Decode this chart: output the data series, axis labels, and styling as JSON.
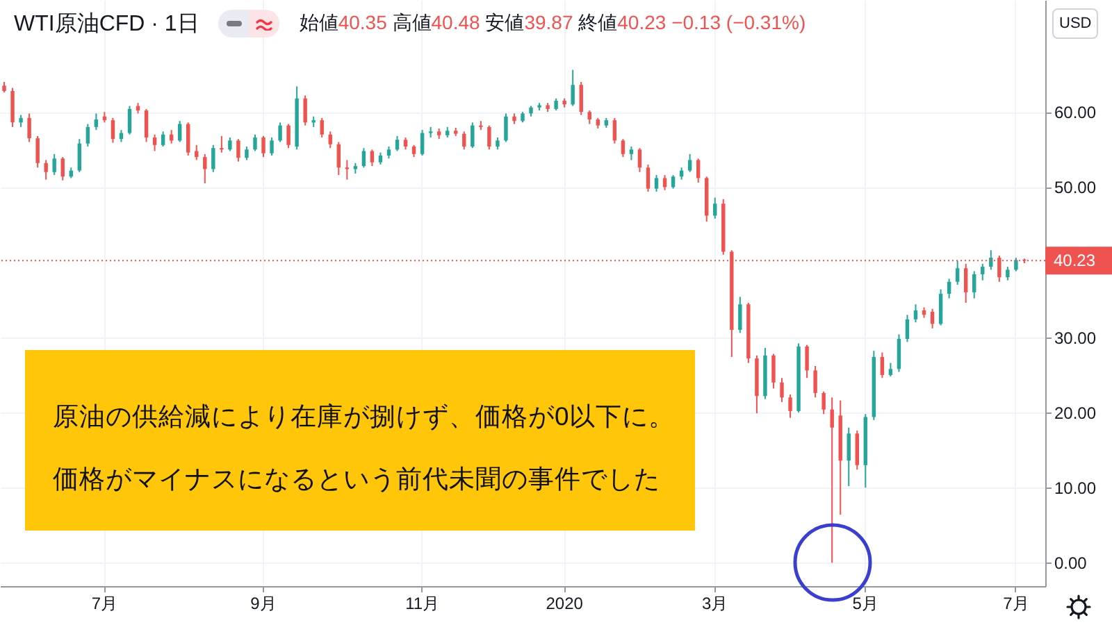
{
  "chart_data": {
    "type": "candlestick",
    "title": "WTI原油CFD · 1日",
    "subtitle": "始値40.35 高値40.48 安値39.87 終値40.23 −0.13 (−0.31%)",
    "ylabel": "USD",
    "annotations": [
      "原油の供給減により在庫が捌けず、価格が0以下に。",
      "価格がマイナスになるという前代未聞の事件でした"
    ],
    "categories": [
      null,
      null,
      null,
      null,
      null,
      null,
      null,
      null,
      null,
      null,
      null,
      null,
      "7月",
      null,
      null,
      null,
      null,
      null,
      null,
      null,
      null,
      null,
      null,
      null,
      null,
      null,
      null,
      null,
      null,
      null,
      null,
      "9月",
      null,
      null,
      null,
      null,
      null,
      null,
      null,
      null,
      null,
      null,
      null,
      null,
      null,
      null,
      null,
      null,
      null,
      null,
      "11月",
      null,
      null,
      null,
      null,
      null,
      null,
      null,
      null,
      null,
      null,
      null,
      null,
      null,
      null,
      null,
      null,
      "2020",
      null,
      null,
      null,
      null,
      null,
      null,
      null,
      null,
      null,
      null,
      null,
      null,
      null,
      null,
      null,
      null,
      null,
      "3月",
      null,
      null,
      null,
      null,
      null,
      null,
      null,
      null,
      null,
      null,
      null,
      null,
      null,
      null,
      null,
      null,
      null,
      "5月",
      null,
      null,
      null,
      null,
      null,
      null,
      null,
      null,
      null,
      null,
      null,
      null,
      null,
      null,
      null,
      null,
      null,
      "7月",
      null,
      null,
      null
    ],
    "ohlc": [
      [
        63.5,
        64.0,
        62.6,
        62.8
      ],
      [
        62.8,
        63.2,
        58.0,
        58.6
      ],
      [
        58.6,
        59.6,
        58.0,
        59.2
      ],
      [
        59.2,
        59.8,
        56.0,
        56.5
      ],
      [
        56.5,
        56.8,
        52.6,
        53.2
      ],
      [
        53.2,
        53.6,
        51.0,
        52.0
      ],
      [
        52.0,
        54.4,
        51.6,
        53.8
      ],
      [
        53.8,
        54.0,
        50.9,
        51.4
      ],
      [
        51.4,
        52.6,
        51.2,
        52.2
      ],
      [
        52.2,
        56.4,
        52.0,
        55.8
      ],
      [
        55.8,
        58.4,
        55.4,
        58.0
      ],
      [
        58.0,
        59.8,
        57.6,
        59.0
      ],
      [
        59.4,
        60.0,
        58.6,
        58.9
      ],
      [
        58.9,
        59.2,
        55.9,
        56.4
      ],
      [
        56.4,
        57.6,
        56.0,
        57.2
      ],
      [
        57.2,
        60.8,
        57.0,
        60.4
      ],
      [
        60.8,
        61.2,
        59.8,
        60.2
      ],
      [
        60.2,
        60.4,
        56.0,
        56.6
      ],
      [
        56.6,
        57.0,
        54.8,
        55.6
      ],
      [
        55.6,
        57.4,
        55.4,
        57.0
      ],
      [
        57.0,
        57.6,
        55.8,
        56.2
      ],
      [
        56.2,
        58.8,
        56.0,
        58.4
      ],
      [
        58.4,
        58.6,
        54.2,
        54.6
      ],
      [
        54.8,
        55.6,
        53.6,
        54.0
      ],
      [
        54.0,
        54.4,
        50.5,
        52.4
      ],
      [
        52.4,
        55.6,
        52.0,
        55.2
      ],
      [
        55.2,
        56.8,
        54.6,
        55.0
      ],
      [
        55.0,
        56.6,
        54.8,
        56.2
      ],
      [
        56.2,
        56.4,
        53.4,
        53.9
      ],
      [
        53.9,
        55.4,
        53.6,
        55.0
      ],
      [
        55.0,
        57.0,
        54.8,
        56.6
      ],
      [
        56.6,
        56.8,
        54.0,
        54.5
      ],
      [
        54.5,
        56.6,
        54.2,
        56.2
      ],
      [
        56.2,
        58.6,
        56.0,
        58.2
      ],
      [
        58.2,
        58.4,
        55.2,
        55.6
      ],
      [
        55.4,
        63.4,
        55.0,
        61.8
      ],
      [
        61.8,
        62.2,
        58.2,
        58.6
      ],
      [
        58.6,
        59.4,
        58.0,
        58.9
      ],
      [
        58.9,
        59.2,
        56.6,
        57.0
      ],
      [
        57.0,
        57.4,
        55.2,
        55.7
      ],
      [
        55.7,
        56.0,
        51.6,
        52.6
      ],
      [
        52.6,
        53.6,
        51.0,
        52.4
      ],
      [
        52.4,
        53.2,
        51.8,
        52.8
      ],
      [
        52.8,
        55.2,
        52.6,
        54.8
      ],
      [
        54.8,
        55.0,
        52.8,
        53.3
      ],
      [
        53.3,
        54.6,
        53.0,
        54.2
      ],
      [
        54.2,
        55.4,
        53.8,
        55.0
      ],
      [
        55.0,
        56.8,
        54.8,
        56.3
      ],
      [
        56.3,
        56.6,
        55.0,
        55.4
      ],
      [
        55.4,
        55.6,
        54.0,
        54.4
      ],
      [
        54.4,
        57.6,
        54.2,
        57.2
      ],
      [
        57.2,
        58.0,
        56.6,
        57.4
      ],
      [
        57.4,
        57.8,
        56.4,
        56.9
      ],
      [
        56.9,
        58.0,
        56.6,
        57.5
      ],
      [
        57.5,
        57.9,
        56.8,
        57.1
      ],
      [
        57.1,
        57.4,
        55.0,
        55.4
      ],
      [
        55.4,
        58.6,
        55.2,
        58.2
      ],
      [
        58.2,
        58.8,
        57.6,
        58.0
      ],
      [
        58.0,
        58.2,
        55.0,
        55.4
      ],
      [
        55.4,
        56.6,
        55.0,
        56.2
      ],
      [
        56.2,
        59.8,
        56.0,
        59.4
      ],
      [
        59.4,
        59.8,
        58.4,
        58.8
      ],
      [
        58.8,
        60.0,
        58.6,
        59.8
      ],
      [
        59.8,
        60.8,
        59.4,
        60.6
      ],
      [
        60.6,
        61.2,
        60.2,
        60.9
      ],
      [
        60.9,
        61.2,
        60.0,
        60.4
      ],
      [
        60.4,
        61.8,
        60.2,
        61.5
      ],
      [
        61.5,
        61.8,
        60.6,
        61.0
      ],
      [
        61.0,
        65.6,
        60.8,
        63.6
      ],
      [
        63.6,
        64.0,
        59.6,
        60.0
      ],
      [
        60.0,
        60.2,
        58.4,
        59.0
      ],
      [
        59.0,
        59.2,
        57.8,
        58.2
      ],
      [
        58.2,
        59.2,
        57.9,
        58.9
      ],
      [
        58.9,
        59.2,
        55.8,
        56.2
      ],
      [
        56.2,
        56.4,
        54.0,
        54.4
      ],
      [
        54.4,
        55.4,
        53.6,
        55.0
      ],
      [
        55.0,
        55.2,
        52.0,
        52.6
      ],
      [
        52.6,
        53.0,
        49.4,
        49.8
      ],
      [
        49.8,
        51.6,
        49.4,
        51.2
      ],
      [
        51.2,
        51.6,
        49.6,
        50.0
      ],
      [
        50.0,
        51.6,
        49.8,
        51.4
      ],
      [
        51.4,
        52.6,
        51.0,
        52.2
      ],
      [
        52.2,
        54.4,
        52.0,
        53.6
      ],
      [
        53.6,
        53.8,
        50.6,
        51.2
      ],
      [
        51.2,
        51.4,
        45.4,
        46.2
      ],
      [
        46.2,
        48.6,
        45.8,
        47.8
      ],
      [
        47.8,
        48.4,
        41.0,
        41.4
      ],
      [
        41.4,
        41.6,
        27.4,
        31.0
      ],
      [
        31.0,
        35.4,
        30.6,
        34.4
      ],
      [
        34.4,
        34.6,
        26.6,
        27.2
      ],
      [
        27.2,
        27.6,
        19.9,
        22.2
      ],
      [
        22.2,
        28.6,
        21.8,
        27.6
      ],
      [
        27.6,
        27.8,
        23.2,
        24.0
      ],
      [
        24.0,
        24.6,
        21.4,
        22.0
      ],
      [
        22.0,
        22.4,
        19.3,
        20.2
      ],
      [
        20.2,
        29.2,
        20.0,
        28.8
      ],
      [
        28.8,
        29.0,
        24.6,
        25.6
      ],
      [
        25.6,
        26.2,
        22.0,
        22.6
      ],
      [
        22.6,
        22.8,
        19.8,
        20.4
      ],
      [
        20.4,
        22.0,
        0.0,
        18.0
      ],
      [
        19.6,
        21.6,
        6.4,
        13.6
      ],
      [
        13.6,
        18.0,
        10.2,
        17.2
      ],
      [
        17.2,
        17.6,
        12.4,
        13.0
      ],
      [
        13.0,
        19.8,
        10.0,
        19.4
      ],
      [
        19.4,
        28.2,
        19.0,
        27.4
      ],
      [
        27.4,
        28.0,
        24.6,
        25.0
      ],
      [
        25.0,
        26.6,
        24.8,
        25.8
      ],
      [
        25.8,
        30.4,
        25.4,
        29.8
      ],
      [
        29.8,
        33.0,
        29.4,
        32.4
      ],
      [
        32.4,
        34.4,
        32.0,
        33.6
      ],
      [
        33.6,
        34.0,
        32.6,
        33.0
      ],
      [
        33.4,
        33.8,
        31.2,
        31.8
      ],
      [
        31.8,
        36.4,
        31.6,
        35.8
      ],
      [
        35.8,
        37.8,
        35.2,
        37.4
      ],
      [
        37.4,
        40.2,
        37.0,
        39.2
      ],
      [
        39.2,
        39.8,
        34.6,
        36.0
      ],
      [
        36.0,
        38.8,
        35.2,
        38.4
      ],
      [
        38.4,
        39.8,
        37.6,
        39.4
      ],
      [
        39.4,
        41.6,
        39.0,
        40.6
      ],
      [
        40.6,
        40.9,
        37.4,
        38.0
      ],
      [
        38.0,
        39.4,
        37.6,
        39.0
      ],
      [
        39.0,
        40.6,
        38.8,
        40.3
      ],
      [
        40.35,
        40.48,
        39.87,
        40.23
      ],
      null,
      null
    ],
    "colors": [
      "#ef5350",
      "#ef5350",
      "#26a69a",
      "#ef5350",
      "#ef5350",
      "#ef5350",
      "#26a69a",
      "#ef5350",
      "#26a69a",
      "#26a69a",
      "#26a69a",
      "#26a69a",
      "#ef5350",
      "#ef5350",
      "#26a69a",
      "#26a69a",
      "#ef5350",
      "#ef5350",
      "#ef5350",
      "#26a69a",
      "#ef5350",
      "#26a69a",
      "#ef5350",
      "#ef5350",
      "#ef5350",
      "#26a69a",
      "#ef5350",
      "#26a69a",
      "#ef5350",
      "#26a69a",
      "#26a69a",
      "#ef5350",
      "#26a69a",
      "#26a69a",
      "#ef5350",
      "#26a69a",
      "#ef5350",
      "#26a69a",
      "#ef5350",
      "#ef5350",
      "#ef5350",
      "#ef5350",
      "#26a69a",
      "#26a69a",
      "#ef5350",
      "#26a69a",
      "#26a69a",
      "#26a69a",
      "#ef5350",
      "#ef5350",
      "#26a69a",
      "#26a69a",
      "#ef5350",
      "#26a69a",
      "#ef5350",
      "#ef5350",
      "#26a69a",
      "#ef5350",
      "#ef5350",
      "#26a69a",
      "#26a69a",
      "#ef5350",
      "#26a69a",
      "#26a69a",
      "#26a69a",
      "#ef5350",
      "#26a69a",
      "#ef5350",
      "#26a69a",
      "#ef5350",
      "#ef5350",
      "#ef5350",
      "#26a69a",
      "#ef5350",
      "#ef5350",
      "#26a69a",
      "#ef5350",
      "#ef5350",
      "#26a69a",
      "#ef5350",
      "#26a69a",
      "#26a69a",
      "#26a69a",
      "#ef5350",
      "#ef5350",
      "#26a69a",
      "#ef5350",
      "#ef5350",
      "#26a69a",
      "#ef5350",
      "#ef5350",
      "#26a69a",
      "#ef5350",
      "#ef5350",
      "#ef5350",
      "#26a69a",
      "#ef5350",
      "#ef5350",
      "#ef5350",
      "#ef5350",
      "#ef5350",
      "#26a69a",
      "#ef5350",
      "#26a69a",
      "#26a69a",
      "#ef5350",
      "#26a69a",
      "#26a69a",
      "#26a69a",
      "#26a69a",
      "#ef5350",
      "#ef5350",
      "#26a69a",
      "#26a69a",
      "#26a69a",
      "#ef5350",
      "#26a69a",
      "#26a69a",
      "#26a69a",
      "#ef5350",
      "#26a69a",
      "#26a69a",
      "#ef5350",
      null,
      null
    ],
    "ylim": [
      -3.1,
      74.9
    ],
    "yticks": [
      {
        "value": 0,
        "label": "0.00"
      },
      {
        "value": 10,
        "label": "10.00"
      },
      {
        "value": 20,
        "label": "20.00"
      },
      {
        "value": 30,
        "label": "30.00"
      },
      {
        "value": 50,
        "label": "50.00"
      },
      {
        "value": 60,
        "label": "60.00"
      }
    ],
    "ref_lines": [
      {
        "axis": "y",
        "value": 40.23,
        "label": "40.23",
        "color": "#ef5350",
        "line_style": "dotted"
      }
    ],
    "grid": true
  }
}
